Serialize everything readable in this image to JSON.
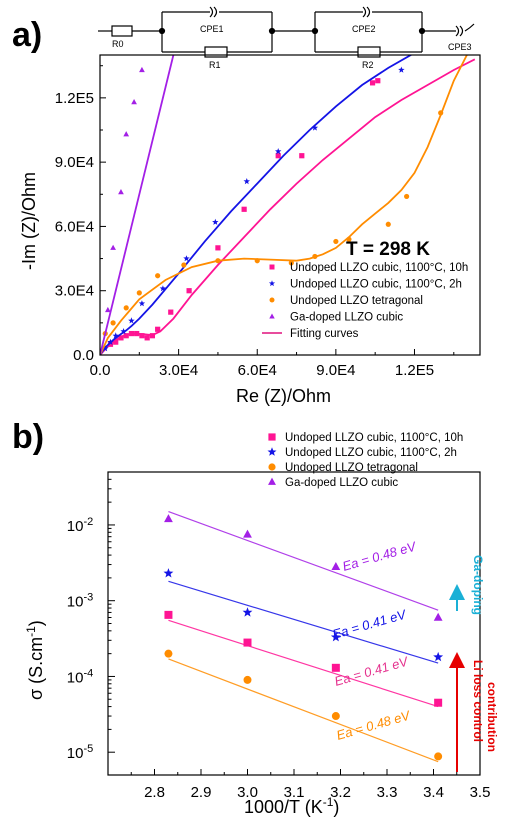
{
  "panel_labels": {
    "a": "a)",
    "b": "b)"
  },
  "colors": {
    "pink": "#ff1493",
    "blue": "#1414e6",
    "orange": "#ff8c00",
    "purple": "#a31fe6",
    "fit": "#e5338f",
    "cyan": "#1ab0d6",
    "red": "#e60000"
  },
  "circuit": {
    "labels": [
      "R0",
      "CPE1",
      "R1",
      "CPE2",
      "R2",
      "CPE3"
    ]
  },
  "annotations": {
    "temperature": "T = 298 K",
    "ea_values": [
      "Ea = 0.48 eV",
      "Ea = 0.41 eV",
      "Ea = 0.41 eV",
      "Ea = 0.48 eV"
    ],
    "ga_doping": "Ga-doping",
    "li_loss": "Li loss control",
    "contribution": "contribution"
  },
  "chart_data": [
    {
      "type": "scatter",
      "xlabel": "Re (Z)/Ohm",
      "ylabel": "-Im (Z)/Ohm",
      "xlim": [
        0,
        145000
      ],
      "ylim": [
        0,
        140000
      ],
      "x_ticks": [
        "0.0",
        "3.0E4",
        "6.0E4",
        "9.0E4",
        "1.2E5"
      ],
      "y_ticks": [
        "0.0",
        "3.0E4",
        "6.0E4",
        "9.0E4",
        "1.2E5"
      ],
      "legend": [
        "Undoped LLZO cubic, 1100°C, 10h",
        "Undoped LLZO cubic, 1100°C, 2h",
        "Undoped LLZO tetragonal",
        "Ga-doped LLZO cubic",
        "Fitting curves"
      ],
      "series": [
        {
          "name": "Undoped LLZO cubic, 1100°C, 10h",
          "marker": "square",
          "x": [
            4000,
            6000,
            8000,
            10000,
            12000,
            14000,
            16000,
            18000,
            20000,
            22000,
            27000,
            34000,
            45000,
            55000,
            68000,
            77000,
            104000,
            106000
          ],
          "y": [
            5000,
            6000,
            8000,
            9000,
            10000,
            10000,
            9000,
            8000,
            9000,
            12000,
            20000,
            30000,
            50000,
            68000,
            93000,
            93000,
            127000,
            128000
          ],
          "fit_x": [
            0,
            3000,
            6000,
            9000,
            12000,
            16000,
            20000,
            23000,
            28000,
            35000,
            45000,
            55000,
            65000,
            75000,
            85000,
            95000,
            105000,
            115000,
            125000,
            135000,
            143000
          ],
          "fit_y": [
            0,
            4000,
            7000,
            9000,
            10000,
            9800,
            9300,
            11000,
            17000,
            28000,
            42000,
            55000,
            68000,
            80000,
            91000,
            101000,
            111000,
            119000,
            126000,
            133000,
            138000
          ]
        },
        {
          "name": "Undoped LLZO cubic, 1100°C, 2h",
          "marker": "star",
          "x": [
            2000,
            4000,
            6000,
            9000,
            12000,
            16000,
            24000,
            33000,
            44000,
            56000,
            68000,
            82000,
            115000
          ],
          "y": [
            3000,
            6000,
            9000,
            11000,
            16000,
            24000,
            31000,
            45000,
            62000,
            81000,
            95000,
            106000,
            133000
          ],
          "fit_x": [
            0,
            2000,
            5000,
            8000,
            10000,
            12000,
            15000,
            20000,
            30000,
            40000,
            50000,
            60000,
            70000,
            80000,
            90000,
            100000,
            110000,
            120000
          ],
          "fit_y": [
            0,
            3500,
            7000,
            9800,
            11500,
            13500,
            17000,
            23500,
            38000,
            53000,
            67000,
            80000,
            93000,
            105000,
            116000,
            126000,
            134000,
            141000
          ]
        },
        {
          "name": "Undoped LLZO tetragonal",
          "marker": "circle",
          "x": [
            2000,
            5000,
            10000,
            15000,
            22000,
            32000,
            45000,
            60000,
            73000,
            82000,
            90000,
            95000,
            110000,
            117000,
            130000
          ],
          "y": [
            10000,
            15000,
            22000,
            29000,
            37000,
            42000,
            44000,
            44000,
            43000,
            46000,
            53000,
            54000,
            61000,
            74000,
            113000
          ],
          "fit_x": [
            0,
            3000,
            8000,
            15000,
            25000,
            35000,
            45000,
            55000,
            65000,
            75000,
            80000,
            85000,
            90000,
            95000,
            100000,
            105000,
            110000,
            115000,
            120000,
            125000,
            130000,
            135000,
            140000
          ],
          "fit_y": [
            0,
            8000,
            16000,
            26000,
            35000,
            41000,
            44000,
            45000,
            44500,
            44000,
            45000,
            47000,
            50000,
            55000,
            61000,
            66000,
            71000,
            77000,
            85000,
            97000,
            112000,
            128000,
            140000
          ]
        },
        {
          "name": "Ga-doped LLZO cubic",
          "marker": "triangle",
          "x": [
            3000,
            5000,
            8000,
            10000,
            13000,
            16000
          ],
          "y": [
            21000,
            50000,
            76000,
            103000,
            118000,
            133000
          ],
          "fit_x": [
            0,
            28000
          ],
          "fit_y": [
            0,
            140000
          ]
        }
      ]
    },
    {
      "type": "scatter",
      "xlabel": "1000/T (K-1)",
      "ylabel": "σ (S.cm-1)",
      "y_scale": "log",
      "xlim": [
        2.7,
        3.5
      ],
      "ylim": [
        5e-06,
        0.05
      ],
      "x_ticks": [
        "2.8",
        "2.9",
        "3.0",
        "3.1",
        "3.2",
        "3.3",
        "3.4",
        "3.5"
      ],
      "y_ticks": [
        "10-5",
        "10-4",
        "10-3",
        "10-2"
      ],
      "legend": [
        "Undoped LLZO cubic, 1100°C, 10h",
        "Undoped LLZO cubic, 1100°C, 2h",
        "Undoped LLZO tetragonal",
        "Ga-doped LLZO cubic"
      ],
      "series": [
        {
          "name": "Undoped LLZO cubic, 1100°C, 10h",
          "marker": "square",
          "x": [
            2.83,
            3.0,
            3.19,
            3.41
          ],
          "y": [
            0.00065,
            0.00028,
            0.00013,
            4.5e-05
          ],
          "fit": [
            [
              2.83,
              0.00055
            ],
            [
              3.41,
              4e-05
            ]
          ]
        },
        {
          "name": "Undoped LLZO cubic, 1100°C, 2h",
          "marker": "star",
          "x": [
            2.83,
            3.0,
            3.19,
            3.41
          ],
          "y": [
            0.0023,
            0.0007,
            0.00033,
            0.00018
          ],
          "fit": [
            [
              2.83,
              0.0018
            ],
            [
              3.41,
              0.00015
            ]
          ]
        },
        {
          "name": "Undoped LLZO tetragonal",
          "marker": "circle",
          "x": [
            2.83,
            3.0,
            3.19,
            3.41
          ],
          "y": [
            0.0002,
            9e-05,
            3e-05,
            8.8e-06
          ],
          "fit": [
            [
              2.83,
              0.00017
            ],
            [
              3.41,
              7.5e-06
            ]
          ]
        },
        {
          "name": "Ga-doped LLZO cubic",
          "marker": "triangle",
          "x": [
            2.83,
            3.0,
            3.19,
            3.41
          ],
          "y": [
            0.012,
            0.0075,
            0.0028,
            0.0006
          ],
          "fit": [
            [
              2.83,
              0.015
            ],
            [
              3.41,
              0.00075
            ]
          ]
        }
      ]
    }
  ]
}
